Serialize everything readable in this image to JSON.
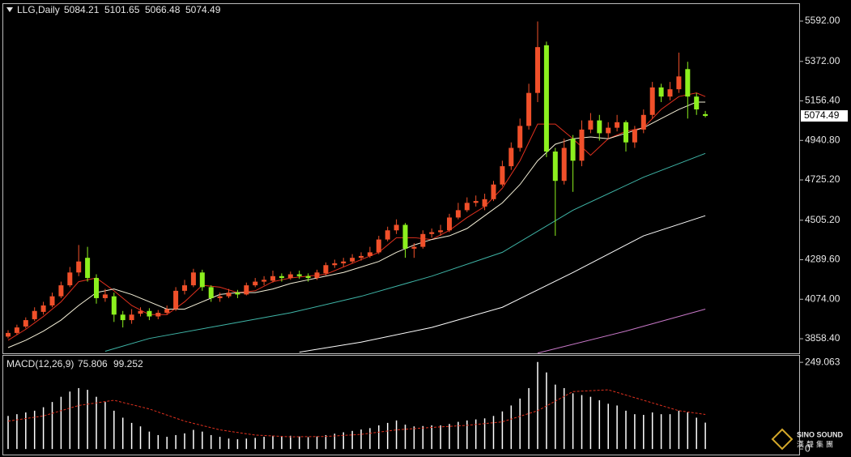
{
  "chart_data": {
    "type": "candlestick",
    "title": "LLG,Daily",
    "up_color": "#f0502a",
    "down_color": "#8cf01e",
    "ylim": [
      3779,
      5685
    ],
    "yticks": [
      {
        "value": 5592,
        "label": "5592.00"
      },
      {
        "value": 5372,
        "label": "5372.00"
      },
      {
        "value": 5156.4,
        "label": "5156.40"
      },
      {
        "value": 4940.8,
        "label": "4940.80"
      },
      {
        "value": 4725.2,
        "label": "4725.20"
      },
      {
        "value": 4505.2,
        "label": "4505.20"
      },
      {
        "value": 4289.6,
        "label": "4289.60"
      },
      {
        "value": 4074,
        "label": "4074.00"
      },
      {
        "value": 3858.4,
        "label": "3858.40"
      }
    ],
    "ohlc": [
      [
        3870,
        3905,
        3860,
        3890
      ],
      [
        3890,
        3935,
        3880,
        3920
      ],
      [
        3925,
        3975,
        3915,
        3960
      ],
      [
        3965,
        4030,
        3955,
        4010
      ],
      [
        4005,
        4060,
        3990,
        4040
      ],
      [
        4040,
        4110,
        4030,
        4090
      ],
      [
        4090,
        4170,
        4080,
        4150
      ],
      [
        4150,
        4250,
        4140,
        4220
      ],
      [
        4220,
        4370,
        4200,
        4280
      ],
      [
        4300,
        4360,
        4170,
        4190
      ],
      [
        4190,
        4210,
        4050,
        4080
      ],
      [
        4080,
        4130,
        4060,
        4100
      ],
      [
        4090,
        4110,
        3950,
        3990
      ],
      [
        3990,
        4010,
        3920,
        3960
      ],
      [
        3960,
        4020,
        3940,
        3990
      ],
      [
        3995,
        4030,
        3980,
        4010
      ],
      [
        4010,
        4025,
        3960,
        3980
      ],
      [
        3980,
        4015,
        3965,
        4000
      ],
      [
        4000,
        4040,
        3990,
        4020
      ],
      [
        4020,
        4140,
        4010,
        4120
      ],
      [
        4120,
        4180,
        4100,
        4150
      ],
      [
        4150,
        4240,
        4140,
        4220
      ],
      [
        4220,
        4235,
        4120,
        4140
      ],
      [
        4140,
        4150,
        4060,
        4080
      ],
      [
        4080,
        4110,
        4060,
        4090
      ],
      [
        4090,
        4130,
        4080,
        4110
      ],
      [
        4110,
        4125,
        4080,
        4100
      ],
      [
        4100,
        4165,
        4095,
        4150
      ],
      [
        4150,
        4190,
        4140,
        4170
      ],
      [
        4170,
        4200,
        4150,
        4180
      ],
      [
        4175,
        4230,
        4165,
        4200
      ],
      [
        4200,
        4215,
        4170,
        4190
      ],
      [
        4190,
        4225,
        4180,
        4210
      ],
      [
        4210,
        4230,
        4185,
        4200
      ],
      [
        4200,
        4215,
        4170,
        4190
      ],
      [
        4190,
        4235,
        4180,
        4220
      ],
      [
        4215,
        4275,
        4205,
        4260
      ],
      [
        4260,
        4290,
        4245,
        4270
      ],
      [
        4270,
        4300,
        4250,
        4280
      ],
      [
        4280,
        4320,
        4270,
        4300
      ],
      [
        4300,
        4330,
        4285,
        4310
      ],
      [
        4310,
        4360,
        4300,
        4330
      ],
      [
        4330,
        4420,
        4320,
        4400
      ],
      [
        4400,
        4470,
        4390,
        4450
      ],
      [
        4450,
        4510,
        4430,
        4480
      ],
      [
        4480,
        4490,
        4300,
        4350
      ],
      [
        4350,
        4380,
        4300,
        4360
      ],
      [
        4360,
        4450,
        4350,
        4430
      ],
      [
        4430,
        4460,
        4410,
        4440
      ],
      [
        4440,
        4480,
        4420,
        4450
      ],
      [
        4450,
        4540,
        4440,
        4520
      ],
      [
        4520,
        4600,
        4510,
        4560
      ],
      [
        4560,
        4630,
        4550,
        4600
      ],
      [
        4600,
        4640,
        4580,
        4610
      ],
      [
        4580,
        4650,
        4560,
        4620
      ],
      [
        4620,
        4720,
        4610,
        4700
      ],
      [
        4700,
        4830,
        4690,
        4800
      ],
      [
        4800,
        4930,
        4780,
        4900
      ],
      [
        4900,
        5060,
        4880,
        5020
      ],
      [
        5020,
        5250,
        5000,
        5200
      ],
      [
        5200,
        5590,
        5150,
        5450
      ],
      [
        5460,
        5480,
        4850,
        4880
      ],
      [
        4880,
        4900,
        4420,
        4720
      ],
      [
        4720,
        4950,
        4700,
        4900
      ],
      [
        4950,
        4970,
        4660,
        4830
      ],
      [
        4830,
        5050,
        4800,
        5000
      ],
      [
        5000,
        5090,
        4980,
        5050
      ],
      [
        5050,
        5080,
        4940,
        4980
      ],
      [
        4980,
        5040,
        4950,
        5010
      ],
      [
        5010,
        5080,
        4990,
        5040
      ],
      [
        5040,
        5050,
        4880,
        4930
      ],
      [
        4930,
        5020,
        4900,
        5000
      ],
      [
        5000,
        5110,
        4980,
        5080
      ],
      [
        5080,
        5260,
        5060,
        5230
      ],
      [
        5230,
        5250,
        5150,
        5180
      ],
      [
        5180,
        5260,
        5160,
        5220
      ],
      [
        5220,
        5420,
        5200,
        5290
      ],
      [
        5330,
        5370,
        5060,
        5180
      ],
      [
        5180,
        5200,
        5080,
        5110
      ],
      [
        5084.21,
        5101.65,
        5066.48,
        5074.49
      ]
    ],
    "ma_lines": [
      {
        "color": "#e0301e",
        "x": [
          0,
          2,
          4,
          6,
          8,
          10,
          12,
          14,
          16,
          18,
          20,
          22,
          24,
          26,
          28,
          30,
          32,
          34,
          36,
          38,
          40,
          42,
          44,
          46,
          48,
          50,
          52,
          54,
          56,
          58,
          60,
          62,
          64,
          66,
          68,
          70,
          72,
          74,
          76,
          78,
          79
        ],
        "values": [
          3850,
          3910,
          3980,
          4060,
          4170,
          4190,
          4120,
          4040,
          3990,
          3990,
          4060,
          4150,
          4140,
          4110,
          4120,
          4170,
          4190,
          4200,
          4210,
          4250,
          4290,
          4330,
          4410,
          4410,
          4400,
          4450,
          4520,
          4580,
          4680,
          4830,
          5030,
          5030,
          4950,
          4860,
          4950,
          4990,
          5010,
          5110,
          5180,
          5200,
          5180
        ]
      },
      {
        "color": "#f5f0d8",
        "x": [
          0,
          2,
          4,
          6,
          8,
          10,
          12,
          14,
          16,
          18,
          20,
          22,
          24,
          26,
          28,
          30,
          32,
          34,
          36,
          38,
          40,
          42,
          44,
          46,
          48,
          50,
          52,
          54,
          56,
          58,
          60,
          62,
          64,
          66,
          68,
          70,
          72,
          74,
          76,
          78,
          79
        ],
        "values": [
          3810,
          3850,
          3900,
          3960,
          4040,
          4110,
          4130,
          4100,
          4060,
          4020,
          4020,
          4060,
          4100,
          4110,
          4110,
          4130,
          4160,
          4180,
          4200,
          4220,
          4250,
          4280,
          4330,
          4370,
          4400,
          4420,
          4460,
          4530,
          4600,
          4700,
          4830,
          4920,
          4950,
          4960,
          4950,
          4980,
          5010,
          5060,
          5110,
          5150,
          5150
        ]
      },
      {
        "color": "#3fb6a8",
        "x": [
          11,
          16,
          24,
          32,
          40,
          48,
          56,
          64,
          72,
          79
        ],
        "values": [
          3790,
          3860,
          3930,
          4000,
          4090,
          4200,
          4330,
          4560,
          4740,
          4870
        ]
      },
      {
        "color": "#ffffff",
        "x": [
          33,
          40,
          48,
          56,
          64,
          72,
          79
        ],
        "values": [
          3785,
          3840,
          3920,
          4030,
          4220,
          4420,
          4530
        ]
      },
      {
        "color": "#c878c8",
        "x": [
          60,
          70,
          79
        ],
        "values": [
          3780,
          3900,
          4020
        ]
      }
    ],
    "macd": {
      "label": "MACD(12,26,9)",
      "ylim": [
        -16,
        268
      ],
      "yticks": [
        249.063,
        0
      ],
      "histogram_color": "#ffffff",
      "histogram": [
        95,
        100,
        105,
        110,
        120,
        135,
        150,
        165,
        175,
        170,
        150,
        135,
        110,
        90,
        75,
        65,
        50,
        40,
        35,
        40,
        45,
        55,
        50,
        40,
        35,
        30,
        28,
        30,
        32,
        35,
        38,
        36,
        38,
        36,
        34,
        36,
        40,
        44,
        48,
        52,
        56,
        60,
        68,
        75,
        82,
        70,
        65,
        66,
        68,
        68,
        72,
        78,
        82,
        85,
        88,
        95,
        108,
        125,
        145,
        175,
        250,
        220,
        185,
        175,
        160,
        155,
        150,
        140,
        130,
        125,
        110,
        100,
        98,
        105,
        100,
        100,
        110,
        105,
        90,
        75.806
      ],
      "signal_color": "#e0301e",
      "signal_x": [
        0,
        4,
        8,
        12,
        16,
        20,
        24,
        28,
        32,
        36,
        40,
        44,
        48,
        52,
        56,
        60,
        64,
        68,
        72,
        76,
        79
      ],
      "signal": [
        80,
        95,
        125,
        140,
        115,
        80,
        55,
        40,
        35,
        36,
        42,
        55,
        62,
        68,
        78,
        110,
        165,
        170,
        140,
        110,
        99.252
      ]
    },
    "watermark": {
      "brand": "SINO SOUND",
      "brand_cn": "漢聲集團"
    }
  }
}
